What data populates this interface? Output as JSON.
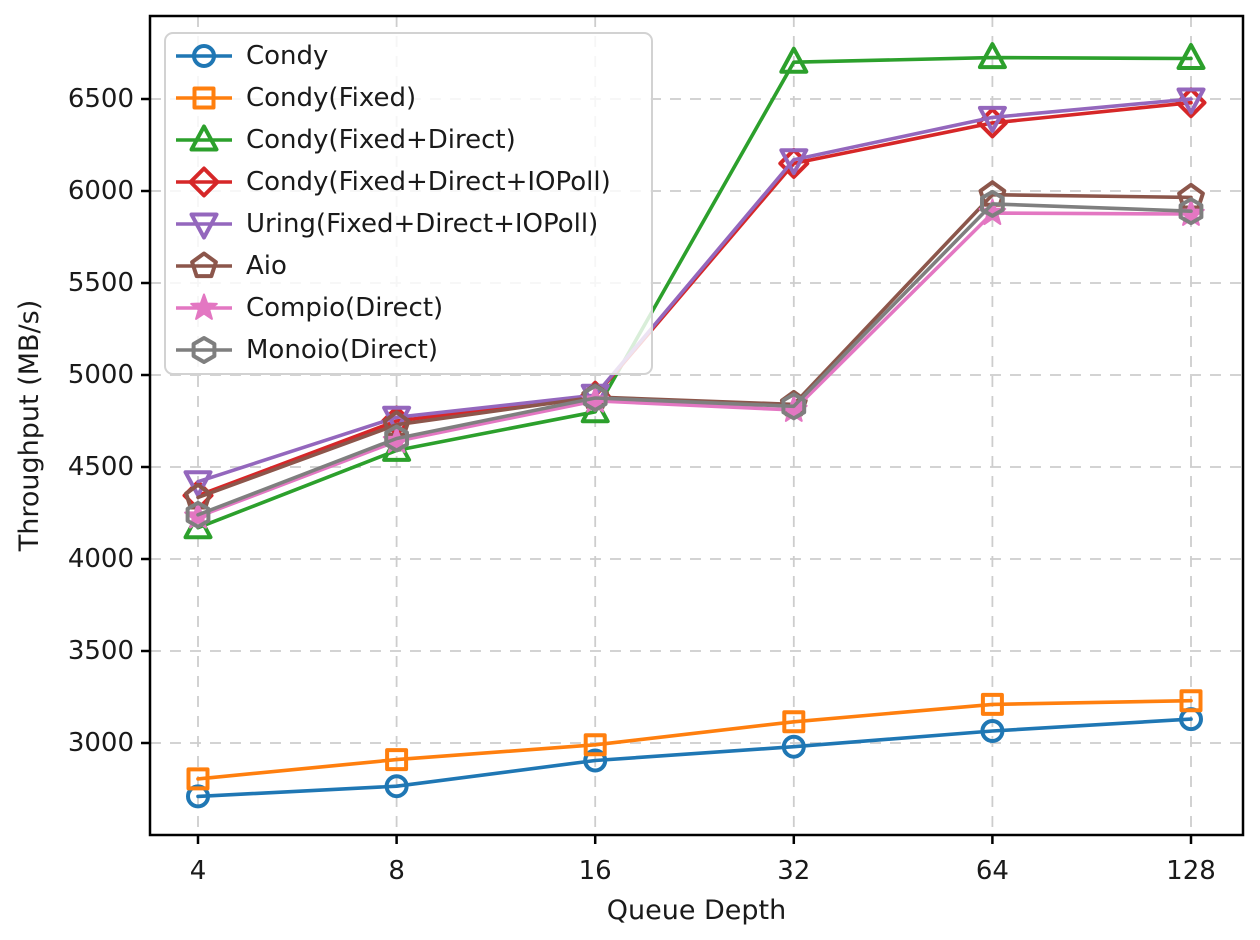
{
  "figure": {
    "background": "#ffffff",
    "title": ""
  },
  "chart_data": {
    "type": "line",
    "title": "",
    "xlabel": "Queue Depth",
    "ylabel": "Throughput (MB/s)",
    "x_scale": "log2",
    "x": [
      4,
      8,
      16,
      32,
      64,
      128
    ],
    "x_tick_labels": [
      "4",
      "8",
      "16",
      "32",
      "64",
      "128"
    ],
    "y_ticks": [
      "3000",
      "3500",
      "4000",
      "4500",
      "5000",
      "5500",
      "6000",
      "6500"
    ],
    "y_tick_values": [
      3000,
      3500,
      4000,
      4500,
      5000,
      5500,
      6000,
      6500
    ],
    "ylim": [
      2500,
      6930
    ],
    "grid": {
      "visible": true,
      "style": "dashed",
      "color": "#cdcdcd"
    },
    "legend": {
      "position": "upper-left",
      "frame": true,
      "frame_alpha": 0.82
    },
    "series": [
      {
        "name": "Condy",
        "color": "#1f77b4",
        "marker": "circle",
        "fill": "hollow",
        "values": [
          2710,
          2765,
          2905,
          2980,
          3065,
          3130
        ]
      },
      {
        "name": "Condy(Fixed)",
        "color": "#ff7f0e",
        "marker": "square",
        "fill": "hollow",
        "values": [
          2805,
          2910,
          2990,
          3115,
          3210,
          3230
        ]
      },
      {
        "name": "Condy(Fixed+Direct)",
        "color": "#2ca02c",
        "marker": "triangle-up",
        "fill": "hollow",
        "values": [
          4170,
          4590,
          4800,
          6700,
          6725,
          6720
        ]
      },
      {
        "name": "Condy(Fixed+Direct+IOPoll)",
        "color": "#d62728",
        "marker": "diamond",
        "fill": "hollow",
        "values": [
          4345,
          4750,
          4885,
          6150,
          6370,
          6480
        ]
      },
      {
        "name": "Uring(Fixed+Direct+IOPoll)",
        "color": "#9467bd",
        "marker": "triangle-down",
        "fill": "hollow",
        "values": [
          4420,
          4770,
          4890,
          6170,
          6400,
          6500
        ]
      },
      {
        "name": "Aio",
        "color": "#8c564b",
        "marker": "pentagon",
        "fill": "hollow",
        "values": [
          4335,
          4730,
          4880,
          4840,
          5980,
          5965
        ]
      },
      {
        "name": "Compio(Direct)",
        "color": "#e377c2",
        "marker": "star",
        "fill": "filled",
        "values": [
          4230,
          4640,
          4860,
          4810,
          5880,
          5875
        ]
      },
      {
        "name": "Monoio(Direct)",
        "color": "#7f7f7f",
        "marker": "hexagon",
        "fill": "hollow",
        "values": [
          4240,
          4655,
          4875,
          4830,
          5930,
          5890
        ]
      }
    ]
  }
}
